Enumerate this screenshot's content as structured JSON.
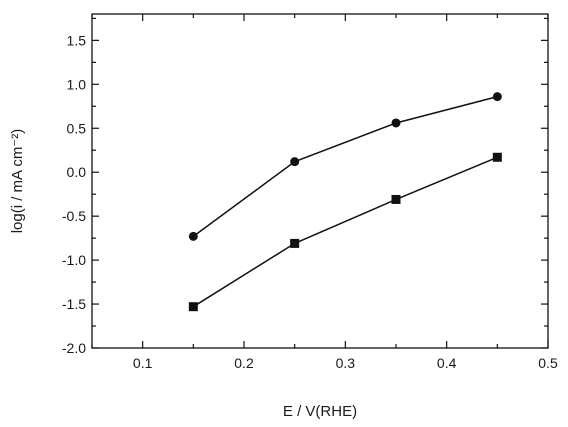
{
  "chart_data": {
    "type": "line",
    "title": "",
    "xlabel": "E / V(RHE)",
    "ylabel": "log(i / mA cm⁻²)",
    "xlim": [
      0.05,
      0.5
    ],
    "ylim": [
      -2.0,
      1.8
    ],
    "xticks": [
      0.1,
      0.2,
      0.3,
      0.4,
      0.5
    ],
    "xtick_labels": [
      "0.1",
      "0.2",
      "0.3",
      "0.4",
      "0.5"
    ],
    "yticks": [
      -2.0,
      -1.5,
      -1.0,
      -0.5,
      0.0,
      0.5,
      1.0,
      1.5
    ],
    "ytick_labels": [
      "-2.0",
      "-1.5",
      "-1.0",
      "-0.5",
      "0.0",
      "0.5",
      "1.0",
      "1.5"
    ],
    "grid": false,
    "legend": false,
    "series": [
      {
        "marker": "circle",
        "color": "#111111",
        "x": [
          0.15,
          0.25,
          0.35,
          0.45
        ],
        "y": [
          -0.73,
          0.12,
          0.56,
          0.86
        ]
      },
      {
        "marker": "square",
        "color": "#111111",
        "x": [
          0.15,
          0.25,
          0.35,
          0.45
        ],
        "y": [
          -1.53,
          -0.81,
          -0.31,
          0.17
        ]
      }
    ]
  }
}
